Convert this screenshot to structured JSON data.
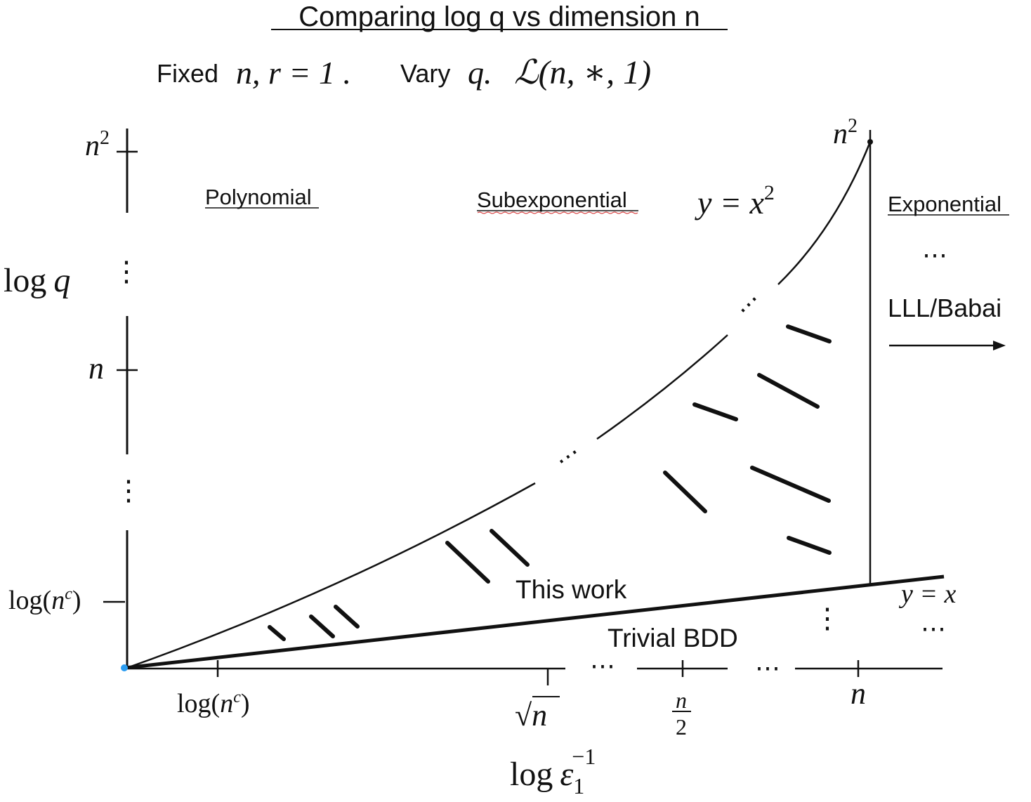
{
  "title": "Comparing log q vs dimension n",
  "subtitle": {
    "fixed_word": "Fixed",
    "fixed_math": "n, r = 1 .",
    "vary_word": "Vary",
    "vary_math": "q.",
    "family_math": "ℒ(n, ∗, 1)"
  },
  "regions": {
    "polynomial": "Polynomial",
    "subexponential": "Subexponential",
    "exponential": "Exponential",
    "exponential_dots": "⋯",
    "lll_babai": "LLL/Babai"
  },
  "curves": {
    "upper_label": "y = x",
    "upper_exp": "2",
    "lower_label": "y = x"
  },
  "annotations": {
    "this_work": "This work",
    "trivial_bdd": "Trivial BDD",
    "dots_lower_right": "⋯",
    "vdots_lower": "⋮"
  },
  "y_axis": {
    "label_log": "log",
    "label_var": "q",
    "tick_top_base": "n",
    "tick_top_exp": "2",
    "tick_mid": "n",
    "tick_low_pre": "log(",
    "tick_low_var": "n",
    "tick_low_exp": "c",
    "tick_low_post": ")",
    "vdots": "⋮"
  },
  "x_axis": {
    "tick1_pre": "log(",
    "tick1_var": "n",
    "tick1_exp": "c",
    "tick1_post": ")",
    "tick2_rad": "√",
    "tick2_var": "n",
    "tick3_num": "n",
    "tick3_den": "2",
    "tick4": "n",
    "dots": "⋯",
    "label_log": "log",
    "label_var": "ε",
    "label_sub": "1",
    "label_sup": "−1"
  },
  "corner": {
    "top_base": "n",
    "top_exp": "2"
  },
  "colors": {
    "ink": "#111111",
    "origin_dot": "#2b9cf0",
    "underline_squiggle": "#d94a4a"
  }
}
